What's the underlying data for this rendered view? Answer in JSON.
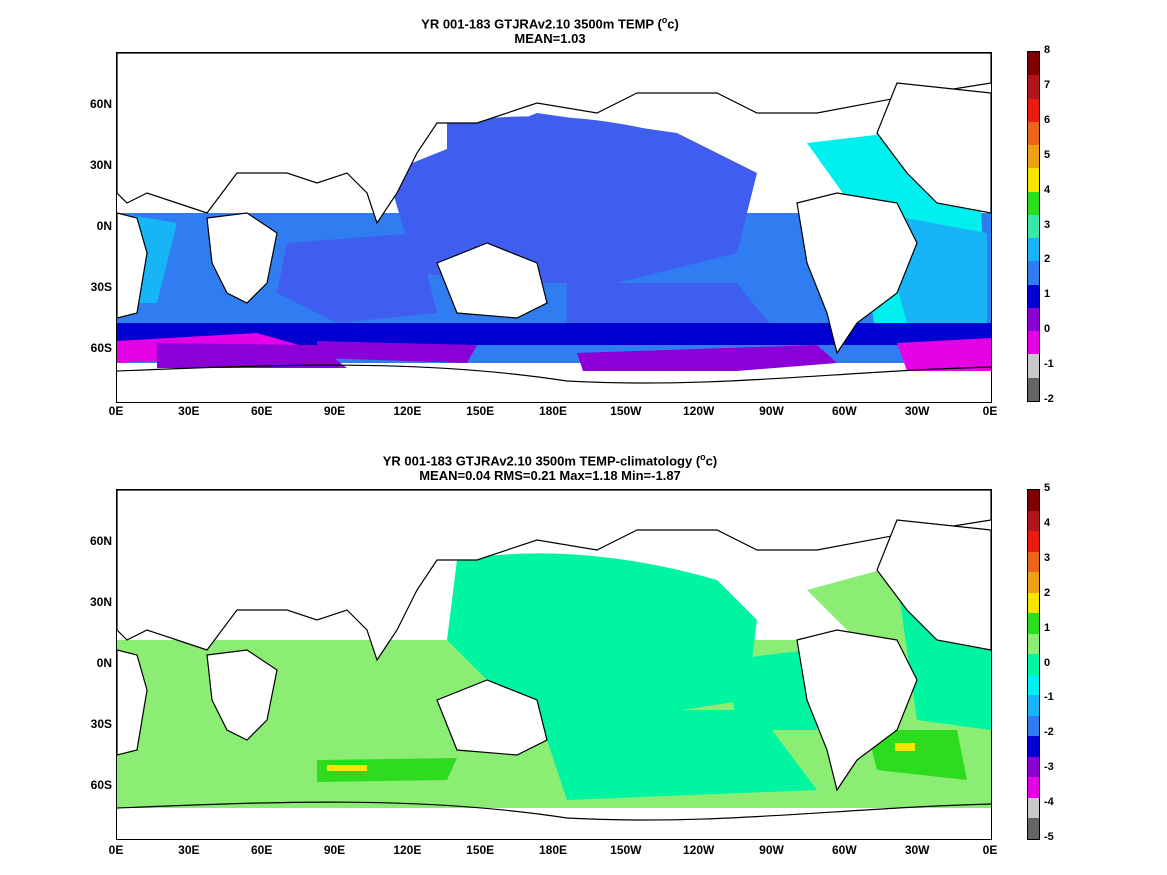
{
  "panel1": {
    "title_prefix": "YR 001-183 GTJRAv2.10 3500m TEMP (",
    "title_unit_sup": "o",
    "title_unit_after": "c)",
    "subtitle": "MEAN=1.03",
    "colorbar_ticks": [
      "8",
      "7",
      "6",
      "5",
      "4",
      "3",
      "2",
      "1",
      "0",
      "-1",
      "-2"
    ]
  },
  "panel2": {
    "title_prefix": "YR 001-183 GTJRAv2.10 3500m TEMP-climatology (",
    "title_unit_sup": "o",
    "title_unit_after": "c)",
    "subtitle": "MEAN=0.04   RMS=0.21   Max=1.18   Min=-1.87",
    "colorbar_ticks": [
      "5",
      "4",
      "3",
      "2",
      "1",
      "0",
      "-1",
      "-2",
      "-3",
      "-4",
      "-5"
    ]
  },
  "lat_labels": [
    "60N",
    "30N",
    "0N",
    "30S",
    "60S"
  ],
  "lon_labels": [
    "0E",
    "30E",
    "60E",
    "90E",
    "120E",
    "150E",
    "180E",
    "150W",
    "120W",
    "90W",
    "60W",
    "30W",
    "0E"
  ],
  "colors": {
    "panel1_scale": [
      "#7f0000",
      "#b0151c",
      "#e81d0f",
      "#e8651b",
      "#f0a016",
      "#f5e600",
      "#2ddc1e",
      "#38e8a5",
      "#17b5f5",
      "#2f7df0",
      "#0000d0",
      "#8a00d6",
      "#e600e6",
      "#c8c8c8",
      "#646464"
    ],
    "panel2_scale": [
      "#7f0000",
      "#b0151c",
      "#e81d0f",
      "#e8651b",
      "#f0a016",
      "#f5e600",
      "#2ddc1e",
      "#8ced74",
      "#00f5a0",
      "#00f0f0",
      "#17b5f5",
      "#2f7df0",
      "#0000d0",
      "#8a00d6",
      "#e600e6",
      "#c8c8c8",
      "#646464"
    ]
  }
}
